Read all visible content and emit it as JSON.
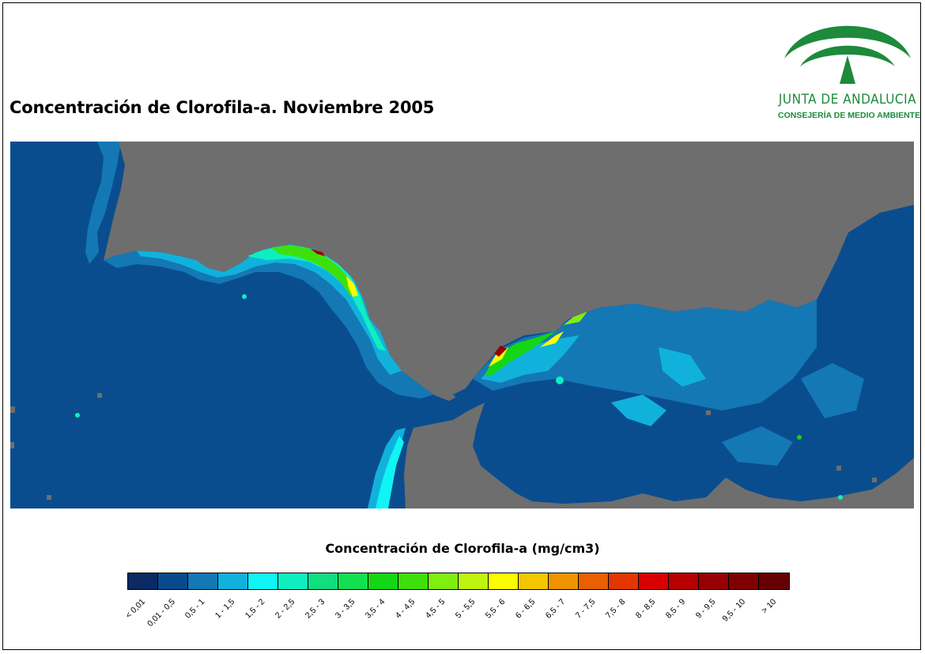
{
  "title": "Concentración de Clorofila-a. Noviembre 2005",
  "logo": {
    "name": "JUNTA DE ANDALUCIA",
    "subtitle": "CONSEJERÍA DE MEDIO AMBIENTE",
    "color": "#1d8a3c"
  },
  "map": {
    "land_color": "#6e6e6e",
    "ocean_base_color": "#0a4d8f"
  },
  "legend": {
    "title": "Concentración de Clorofila-a (mg/cm3)",
    "classes": [
      {
        "label": "< 0,01",
        "color": "#0b2a63"
      },
      {
        "label": "0,01 - 0,5",
        "color": "#0a4a8c"
      },
      {
        "label": "0,5 - 1",
        "color": "#1478b4"
      },
      {
        "label": "1 - 1,5",
        "color": "#10b2dc"
      },
      {
        "label": "1,5 - 2",
        "color": "#10f4f4"
      },
      {
        "label": "2 - 2,5",
        "color": "#10eec0"
      },
      {
        "label": "2,5 - 3",
        "color": "#10de80"
      },
      {
        "label": "3 - 3,5",
        "color": "#12e050"
      },
      {
        "label": "3,5 - 4",
        "color": "#14d614"
      },
      {
        "label": "4 - 4,5",
        "color": "#3ee00c"
      },
      {
        "label": "4,5 - 5",
        "color": "#80ee10"
      },
      {
        "label": "5 - 5,5",
        "color": "#bef410"
      },
      {
        "label": "5,5 - 6",
        "color": "#fcfc00"
      },
      {
        "label": "6 - 6,5",
        "color": "#f4c600"
      },
      {
        "label": "6,5 - 7",
        "color": "#ee9400"
      },
      {
        "label": "7 - 7,5",
        "color": "#e86000"
      },
      {
        "label": "7,5 - 8",
        "color": "#e43600"
      },
      {
        "label": "8 - 8,5",
        "color": "#da0000"
      },
      {
        "label": "8,5 - 9",
        "color": "#b60000"
      },
      {
        "label": "9 - 9,5",
        "color": "#960000"
      },
      {
        "label": "9,5 - 10",
        "color": "#7e0000"
      },
      {
        "label": "> 10",
        "color": "#640000"
      }
    ]
  }
}
